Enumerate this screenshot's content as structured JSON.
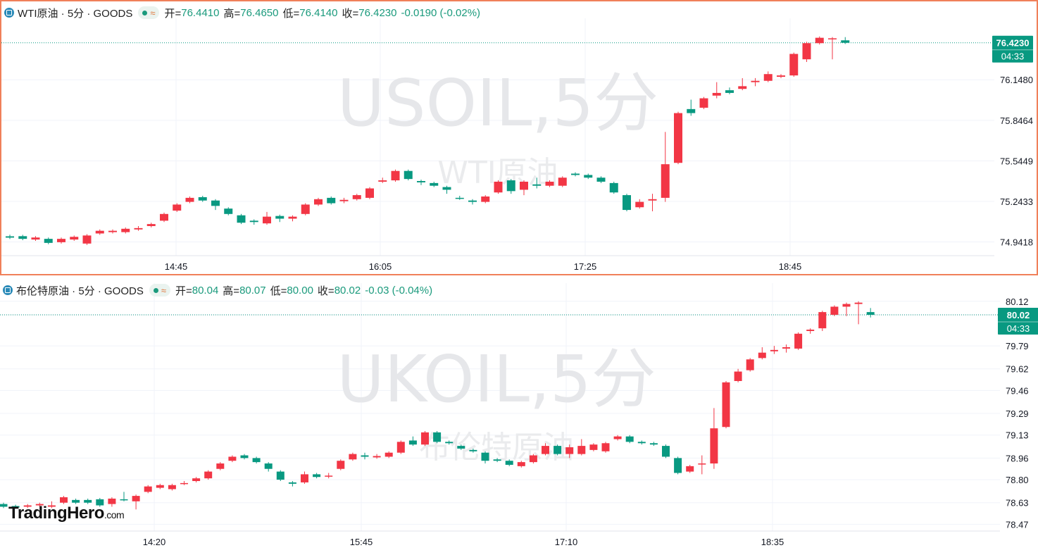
{
  "panels": [
    {
      "title": "WTI原油 · 5分 · GOODS",
      "labels": {
        "open": "开=",
        "high": "高=",
        "low": "低=",
        "close": "收="
      },
      "open": "76.4410",
      "high": "76.4650",
      "low": "76.4140",
      "close": "76.4230",
      "change": "-0.0190 (-0.02%)",
      "watermark_symbol": "USOIL,5分",
      "watermark_name": "WTI原油",
      "price_tag": "76.4230",
      "countdown": "04:33"
    },
    {
      "title": "布伦特原油 · 5分 · GOODS",
      "labels": {
        "open": "开=",
        "high": "高=",
        "low": "低=",
        "close": "收="
      },
      "open": "80.04",
      "high": "80.07",
      "low": "80.00",
      "close": "80.02",
      "change": "-0.03 (-0.04%)",
      "watermark_symbol": "UKOIL,5分",
      "watermark_name": "布伦特原油",
      "price_tag": "80.02",
      "countdown": "04:33"
    }
  ],
  "logo": {
    "brand": "TradingHero",
    "suffix": ".com"
  },
  "colors": {
    "up": "#f23645",
    "down": "#089981",
    "grid": "#f0f3fa",
    "axis_text": "#131722"
  },
  "chart_data": [
    {
      "type": "candlestick",
      "title": "WTI原油 · 5分 · GOODS",
      "y_ticks": [
        76.423,
        76.148,
        75.8464,
        75.5449,
        75.2433,
        74.9418
      ],
      "x_ticks": [
        "14:45",
        "16:05",
        "17:25",
        "18:45"
      ],
      "ylim": [
        74.84,
        76.5
      ],
      "last_price": 76.423,
      "candles": [
        [
          74.984,
          74.974,
          74.996,
          74.964
        ],
        [
          74.985,
          74.965,
          74.995,
          74.955
        ],
        [
          74.96,
          74.975,
          74.985,
          74.95
        ],
        [
          74.965,
          74.935,
          74.975,
          74.925
        ],
        [
          74.94,
          74.965,
          74.975,
          74.93
        ],
        [
          74.96,
          74.98,
          74.99,
          74.95
        ],
        [
          74.93,
          74.99,
          75.0,
          74.92
        ],
        [
          75.005,
          75.025,
          75.035,
          74.995
        ],
        [
          75.015,
          75.025,
          75.035,
          75.005
        ],
        [
          75.015,
          75.04,
          75.05,
          75.005
        ],
        [
          75.035,
          75.045,
          75.06,
          75.025
        ],
        [
          75.06,
          75.075,
          75.085,
          75.05
        ],
        [
          75.1,
          75.15,
          75.16,
          75.09
        ],
        [
          75.175,
          75.22,
          75.23,
          75.165
        ],
        [
          75.24,
          75.27,
          75.28,
          75.23
        ],
        [
          75.275,
          75.25,
          75.285,
          75.24
        ],
        [
          75.25,
          75.21,
          75.26,
          75.18
        ],
        [
          75.19,
          75.15,
          75.2,
          75.14
        ],
        [
          75.14,
          75.085,
          75.15,
          75.075
        ],
        [
          75.1,
          75.09,
          75.11,
          75.07
        ],
        [
          75.08,
          75.13,
          75.165,
          75.07
        ],
        [
          75.135,
          75.115,
          75.145,
          75.09
        ],
        [
          75.115,
          75.13,
          75.14,
          75.095
        ],
        [
          75.15,
          75.22,
          75.23,
          75.14
        ],
        [
          75.22,
          75.26,
          75.27,
          75.21
        ],
        [
          75.27,
          75.23,
          75.28,
          75.22
        ],
        [
          75.245,
          75.255,
          75.27,
          75.23
        ],
        [
          75.26,
          75.29,
          75.3,
          75.25
        ],
        [
          75.27,
          75.34,
          75.35,
          75.26
        ],
        [
          75.39,
          75.4,
          75.42,
          75.38
        ],
        [
          75.4,
          75.47,
          75.48,
          75.39
        ],
        [
          75.47,
          75.41,
          75.48,
          75.4
        ],
        [
          75.395,
          75.385,
          75.405,
          75.365
        ],
        [
          75.38,
          75.36,
          75.39,
          75.35
        ],
        [
          75.35,
          75.33,
          75.36,
          75.3
        ],
        [
          75.27,
          75.265,
          75.285,
          75.255
        ],
        [
          75.25,
          75.24,
          75.26,
          75.22
        ],
        [
          75.24,
          75.28,
          75.29,
          75.23
        ],
        [
          75.31,
          75.39,
          75.4,
          75.3
        ],
        [
          75.4,
          75.32,
          75.41,
          75.3
        ],
        [
          75.33,
          75.39,
          75.4,
          75.29
        ],
        [
          75.37,
          75.36,
          75.42,
          75.34
        ],
        [
          75.36,
          75.39,
          75.4,
          75.35
        ],
        [
          75.36,
          75.42,
          75.43,
          75.35
        ],
        [
          75.45,
          75.44,
          75.46,
          75.43
        ],
        [
          75.44,
          75.42,
          75.45,
          75.41
        ],
        [
          75.42,
          75.39,
          75.43,
          75.38
        ],
        [
          75.38,
          75.31,
          75.39,
          75.3
        ],
        [
          75.29,
          75.18,
          75.3,
          75.17
        ],
        [
          75.2,
          75.24,
          75.26,
          75.19
        ],
        [
          75.25,
          75.26,
          75.3,
          75.17
        ],
        [
          75.27,
          75.52,
          75.76,
          75.24
        ],
        [
          75.53,
          75.9,
          75.91,
          75.52
        ],
        [
          75.93,
          75.9,
          76.0,
          75.88
        ],
        [
          75.94,
          76.01,
          76.02,
          75.93
        ],
        [
          76.03,
          76.05,
          76.13,
          76.01
        ],
        [
          76.07,
          76.05,
          76.09,
          76.04
        ],
        [
          76.08,
          76.1,
          76.16,
          76.07
        ],
        [
          76.13,
          76.14,
          76.16,
          76.1
        ],
        [
          76.14,
          76.19,
          76.21,
          76.13
        ],
        [
          76.17,
          76.18,
          76.19,
          76.16
        ],
        [
          76.18,
          76.34,
          76.35,
          76.17
        ],
        [
          76.3,
          76.42,
          76.43,
          76.28
        ],
        [
          76.42,
          76.46,
          76.47,
          76.41
        ],
        [
          76.455,
          76.456,
          76.465,
          76.3
        ],
        [
          76.441,
          76.423,
          76.465,
          76.414
        ]
      ]
    },
    {
      "type": "candlestick",
      "title": "布伦特原油 · 5分 · GOODS",
      "y_ticks": [
        80.12,
        80.02,
        79.79,
        79.62,
        79.46,
        79.29,
        79.13,
        78.96,
        78.8,
        78.63,
        78.47
      ],
      "x_ticks": [
        "14:20",
        "15:45",
        "17:10",
        "18:35"
      ],
      "ylim": [
        78.42,
        80.15
      ],
      "last_price": 80.02,
      "candles": [
        [
          78.62,
          78.6,
          78.63,
          78.59
        ],
        [
          78.605,
          78.595,
          78.615,
          78.585
        ],
        [
          78.6,
          78.61,
          78.62,
          78.59
        ],
        [
          78.61,
          78.62,
          78.63,
          78.6
        ],
        [
          78.6,
          78.61,
          78.64,
          78.59
        ],
        [
          78.63,
          78.67,
          78.68,
          78.62
        ],
        [
          78.65,
          78.63,
          78.66,
          78.62
        ],
        [
          78.65,
          78.63,
          78.66,
          78.62
        ],
        [
          78.655,
          78.61,
          78.665,
          78.6
        ],
        [
          78.62,
          78.66,
          78.67,
          78.6
        ],
        [
          78.655,
          78.65,
          78.71,
          78.64
        ],
        [
          78.64,
          78.68,
          78.69,
          78.58
        ],
        [
          78.71,
          78.75,
          78.76,
          78.7
        ],
        [
          78.74,
          78.76,
          78.77,
          78.73
        ],
        [
          78.73,
          78.76,
          78.77,
          78.72
        ],
        [
          78.77,
          78.775,
          78.79,
          78.76
        ],
        [
          78.79,
          78.81,
          78.82,
          78.78
        ],
        [
          78.81,
          78.86,
          78.87,
          78.8
        ],
        [
          78.88,
          78.92,
          78.93,
          78.87
        ],
        [
          78.94,
          78.97,
          78.98,
          78.93
        ],
        [
          78.98,
          78.96,
          78.99,
          78.95
        ],
        [
          78.96,
          78.93,
          78.97,
          78.92
        ],
        [
          78.92,
          78.88,
          78.93,
          78.86
        ],
        [
          78.86,
          78.8,
          78.87,
          78.79
        ],
        [
          78.78,
          78.77,
          78.79,
          78.75
        ],
        [
          78.78,
          78.84,
          78.86,
          78.77
        ],
        [
          78.84,
          78.82,
          78.85,
          78.81
        ],
        [
          78.83,
          78.83,
          78.85,
          78.81
        ],
        [
          78.88,
          78.94,
          78.95,
          78.87
        ],
        [
          78.95,
          78.99,
          79.0,
          78.94
        ],
        [
          78.98,
          78.97,
          79.0,
          78.95
        ],
        [
          78.965,
          78.975,
          78.99,
          78.955
        ],
        [
          78.97,
          79.0,
          79.01,
          78.96
        ],
        [
          79.0,
          79.08,
          79.09,
          78.99
        ],
        [
          79.09,
          79.06,
          79.12,
          79.05
        ],
        [
          79.06,
          79.15,
          79.16,
          79.05
        ],
        [
          79.15,
          79.08,
          79.16,
          79.07
        ],
        [
          79.08,
          79.07,
          79.09,
          79.06
        ],
        [
          79.05,
          79.03,
          79.06,
          79.02
        ],
        [
          79.02,
          79.01,
          79.03,
          79.0
        ],
        [
          79.0,
          78.94,
          79.01,
          78.92
        ],
        [
          78.95,
          78.94,
          78.96,
          78.93
        ],
        [
          78.94,
          78.91,
          78.95,
          78.9
        ],
        [
          78.9,
          78.93,
          78.94,
          78.89
        ],
        [
          78.93,
          78.98,
          78.99,
          78.92
        ],
        [
          78.99,
          79.05,
          79.07,
          78.98
        ],
        [
          79.05,
          78.99,
          79.06,
          78.98
        ],
        [
          78.99,
          79.04,
          79.06,
          78.96
        ],
        [
          78.99,
          79.05,
          79.1,
          78.98
        ],
        [
          79.02,
          79.06,
          79.07,
          79.01
        ],
        [
          79.01,
          79.07,
          79.08,
          79.0
        ],
        [
          79.1,
          79.12,
          79.13,
          79.09
        ],
        [
          79.12,
          79.08,
          79.13,
          79.07
        ],
        [
          79.08,
          79.07,
          79.09,
          79.06
        ],
        [
          79.07,
          79.06,
          79.08,
          79.05
        ],
        [
          79.05,
          78.97,
          79.06,
          78.96
        ],
        [
          78.96,
          78.85,
          78.97,
          78.84
        ],
        [
          78.86,
          78.9,
          78.91,
          78.85
        ],
        [
          78.92,
          78.92,
          78.98,
          78.84
        ],
        [
          78.92,
          79.18,
          79.33,
          78.88
        ],
        [
          79.19,
          79.52,
          79.53,
          79.18
        ],
        [
          79.53,
          79.6,
          79.62,
          79.52
        ],
        [
          79.61,
          79.69,
          79.7,
          79.6
        ],
        [
          79.7,
          79.74,
          79.78,
          79.69
        ],
        [
          79.75,
          79.76,
          79.79,
          79.73
        ],
        [
          79.77,
          79.78,
          79.8,
          79.74
        ],
        [
          79.77,
          79.88,
          79.89,
          79.76
        ],
        [
          79.9,
          79.91,
          79.92,
          79.88
        ],
        [
          79.92,
          80.04,
          80.05,
          79.9
        ],
        [
          80.02,
          80.08,
          80.09,
          80.01
        ],
        [
          80.08,
          80.1,
          80.11,
          80.01
        ],
        [
          80.1,
          80.11,
          80.12,
          79.95
        ],
        [
          80.04,
          80.02,
          80.07,
          80.0
        ]
      ]
    }
  ]
}
